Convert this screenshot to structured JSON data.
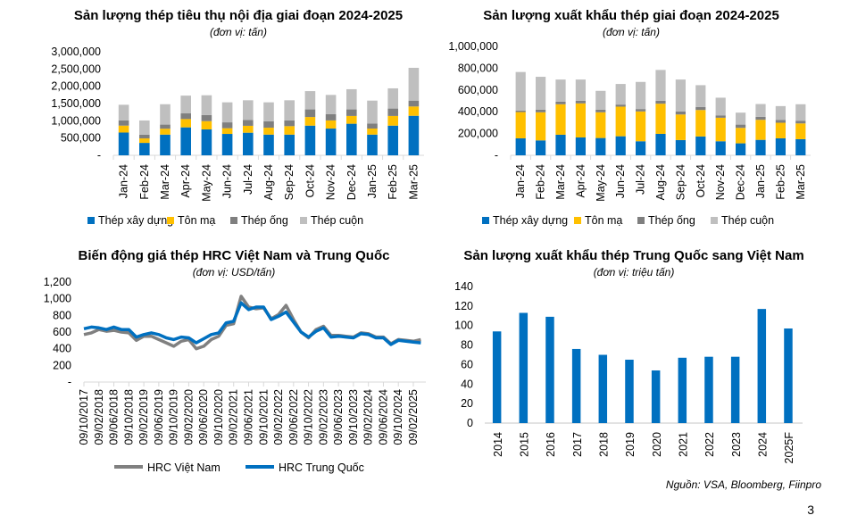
{
  "colors": {
    "blue": "#0070C0",
    "yellow": "#FFC000",
    "darkgray": "#7F7F7F",
    "lightgray": "#BFBFBF",
    "vn_line": "#808080",
    "cn_line": "#0070C0"
  },
  "source": "Nguồn: VSA, Bloomberg, Fiinpro",
  "page_number": "3",
  "chart_data": [
    {
      "type": "bar",
      "stacked": true,
      "title": "Sản lượng thép tiêu thụ nội địa giai đoạn 2024-2025",
      "subtitle": "(đơn vị: tấn)",
      "categories": [
        "Jan-24",
        "Feb-24",
        "Mar-24",
        "Apr-24",
        "May-24",
        "Jun-24",
        "Jul-24",
        "Aug-24",
        "Sep-24",
        "Oct-24",
        "Nov-24",
        "Dec-24",
        "Jan-25",
        "Feb-25",
        "Mar-25"
      ],
      "ylim": [
        0,
        3000000
      ],
      "yticks": [
        "-",
        "500,000",
        "1,000,000",
        "1,500,000",
        "2,000,000",
        "2,500,000",
        "3,000,000"
      ],
      "legend": "bottom",
      "series": [
        {
          "name": "Thép xây dựng",
          "color": "#0070C0",
          "values": [
            660000,
            360000,
            600000,
            810000,
            750000,
            620000,
            655000,
            600000,
            600000,
            860000,
            775000,
            915000,
            600000,
            860000,
            1145000
          ]
        },
        {
          "name": "Tôn mạ",
          "color": "#FFC000",
          "values": [
            200000,
            130000,
            170000,
            240000,
            240000,
            165000,
            200000,
            200000,
            245000,
            250000,
            235000,
            225000,
            175000,
            280000,
            270000
          ]
        },
        {
          "name": "Thép ống",
          "color": "#7F7F7F",
          "values": [
            150000,
            110000,
            120000,
            165000,
            175000,
            170000,
            170000,
            185000,
            165000,
            220000,
            180000,
            190000,
            145000,
            215000,
            170000
          ]
        },
        {
          "name": "Thép cuộn",
          "color": "#BFBFBF",
          "values": [
            455000,
            410000,
            590000,
            515000,
            575000,
            580000,
            570000,
            550000,
            585000,
            530000,
            560000,
            585000,
            665000,
            585000,
            950000
          ]
        }
      ]
    },
    {
      "type": "bar",
      "stacked": true,
      "title": "Sản lượng xuất khẩu thép giai đoạn 2024-2025",
      "subtitle": "(đơn vị: tấn)",
      "categories": [
        "Jan-24",
        "Feb-24",
        "Mar-24",
        "Apr-24",
        "May-24",
        "Jun-24",
        "Jul-24",
        "Aug-24",
        "Sep-24",
        "Oct-24",
        "Nov-24",
        "Dec-24",
        "Jan-25",
        "Feb-25",
        "Mar-25"
      ],
      "ylim": [
        0,
        1000000
      ],
      "yticks": [
        "-",
        "200,000",
        "400,000",
        "600,000",
        "800,000",
        "1,000,000"
      ],
      "legend": "bottom",
      "series": [
        {
          "name": "Thép xây dựng",
          "color": "#0070C0",
          "values": [
            156000,
            137000,
            189000,
            164000,
            159000,
            175000,
            129000,
            197000,
            140000,
            173000,
            129000,
            110000,
            142000,
            156000,
            148000
          ]
        },
        {
          "name": "Tôn mạ",
          "color": "#FFC000",
          "values": [
            241000,
            258000,
            280000,
            313000,
            236000,
            272000,
            274000,
            277000,
            235000,
            243000,
            216000,
            142000,
            184000,
            143000,
            145000
          ]
        },
        {
          "name": "Thép ống",
          "color": "#7F7F7F",
          "values": [
            14000,
            24000,
            24000,
            24000,
            24000,
            19000,
            22000,
            27000,
            28000,
            28000,
            22000,
            30000,
            27000,
            27000,
            25000
          ]
        },
        {
          "name": "Thép cuộn",
          "color": "#BFBFBF",
          "values": [
            354000,
            302000,
            203000,
            195000,
            173000,
            189000,
            249000,
            283000,
            293000,
            200000,
            162000,
            110000,
            118000,
            126000,
            151000
          ]
        }
      ]
    },
    {
      "type": "line",
      "title": "Biến động giá thép HRC Việt Nam và Trung Quốc",
      "subtitle": "(đơn vị: USD/tấn)",
      "xticks": [
        "09/10/2017",
        "09/02/2018",
        "09/06/2018",
        "09/10/2018",
        "09/02/2019",
        "09/06/2019",
        "09/10/2019",
        "09/02/2020",
        "09/06/2020",
        "09/10/2020",
        "09/02/2021",
        "09/06/2021",
        "09/10/2021",
        "09/02/2022",
        "09/06/2022",
        "09/10/2022",
        "09/02/2023",
        "09/06/2023",
        "09/10/2023",
        "09/02/2024",
        "09/06/2024",
        "09/10/2024",
        "09/02/2025"
      ],
      "ylim": [
        0,
        1200
      ],
      "yticks": [
        "-",
        "200",
        "400",
        "600",
        "800",
        "1,000",
        "1,200"
      ],
      "legend": "bottom",
      "x": [
        "2017-10",
        "2017-12",
        "2018-02",
        "2018-04",
        "2018-06",
        "2018-08",
        "2018-10",
        "2018-12",
        "2019-02",
        "2019-04",
        "2019-06",
        "2019-08",
        "2019-10",
        "2019-12",
        "2020-02",
        "2020-04",
        "2020-06",
        "2020-08",
        "2020-10",
        "2020-12",
        "2021-02",
        "2021-04",
        "2021-06",
        "2021-08",
        "2021-10",
        "2021-12",
        "2022-02",
        "2022-04",
        "2022-06",
        "2022-08",
        "2022-10",
        "2022-12",
        "2023-02",
        "2023-04",
        "2023-06",
        "2023-08",
        "2023-10",
        "2023-12",
        "2024-02",
        "2024-04",
        "2024-06",
        "2024-08",
        "2024-10",
        "2024-12",
        "2025-02",
        "2025-04"
      ],
      "series": [
        {
          "name": "HRC Việt Nam",
          "color": "#808080",
          "values": [
            570,
            590,
            630,
            610,
            620,
            600,
            590,
            500,
            550,
            550,
            510,
            470,
            430,
            490,
            510,
            400,
            430,
            510,
            550,
            680,
            700,
            1030,
            900,
            880,
            890,
            760,
            810,
            920,
            750,
            600,
            530,
            630,
            670,
            560,
            560,
            550,
            540,
            590,
            580,
            540,
            540,
            460,
            510,
            500,
            490,
            510
          ]
        },
        {
          "name": "HRC Trung Quốc",
          "color": "#0070C0",
          "values": [
            640,
            660,
            650,
            630,
            660,
            630,
            630,
            540,
            570,
            590,
            570,
            530,
            510,
            540,
            530,
            470,
            520,
            570,
            590,
            710,
            730,
            950,
            870,
            900,
            900,
            750,
            790,
            840,
            720,
            600,
            540,
            610,
            650,
            540,
            550,
            540,
            530,
            580,
            570,
            530,
            530,
            450,
            500,
            490,
            480,
            470
          ]
        }
      ]
    },
    {
      "type": "bar",
      "title": "Sản lượng xuất khẩu thép Trung Quốc sang Việt Nam",
      "subtitle": "(đơn vị: triệu tấn)",
      "categories": [
        "2014",
        "2015",
        "2016",
        "2017",
        "2018",
        "2019",
        "2020",
        "2021",
        "2022",
        "2023",
        "2024",
        "2025F"
      ],
      "values": [
        94,
        113,
        109,
        76,
        70,
        65,
        54,
        67,
        68,
        68,
        117,
        97
      ],
      "ylim": [
        0,
        140
      ],
      "yticks": [
        "0",
        "20",
        "40",
        "60",
        "80",
        "100",
        "120",
        "140"
      ],
      "color": "#0070C0"
    }
  ]
}
